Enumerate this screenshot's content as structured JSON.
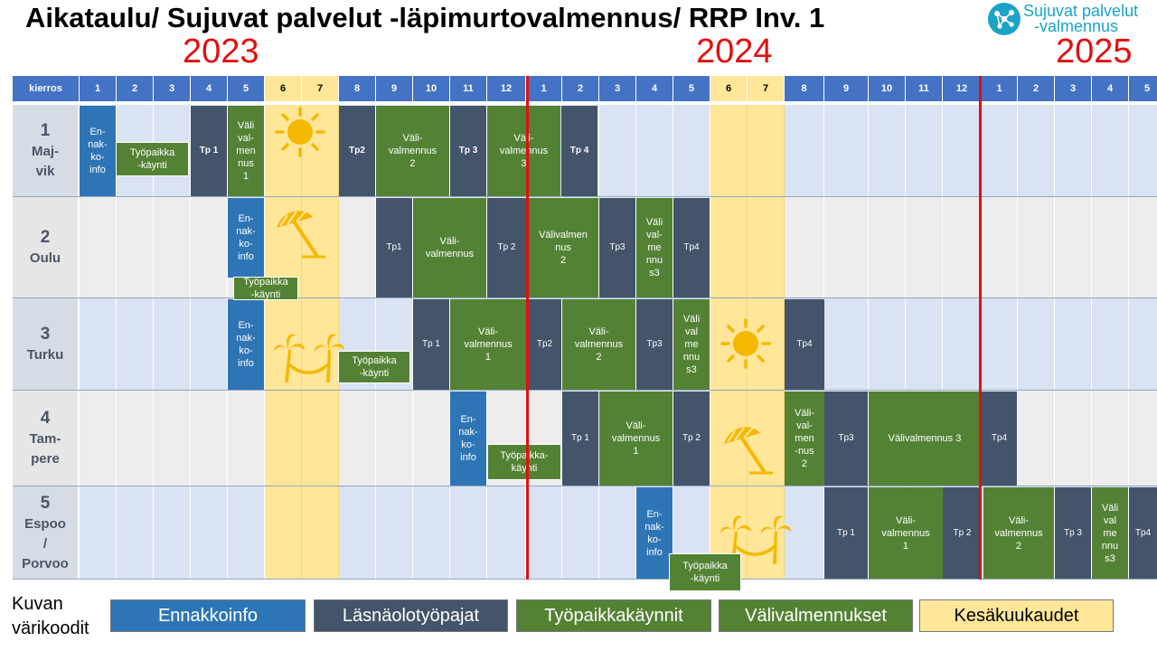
{
  "title": "Aikataulu/ Sujuvat palvelut -läpimurtovalmennus/ RRP Inv. 1",
  "logo": {
    "line1": "Sujuvat palvelut",
    "line2": "-valmennus"
  },
  "years": [
    "2023",
    "2024",
    "2025"
  ],
  "header": {
    "label": "kierros",
    "months": [
      "1",
      "2",
      "3",
      "4",
      "5",
      "6",
      "7",
      "8",
      "9",
      "10",
      "11",
      "12",
      "1",
      "2",
      "3",
      "4",
      "5",
      "6",
      "7",
      "8",
      "9",
      "10",
      "11",
      "12",
      "1",
      "2",
      "3",
      "4",
      "5"
    ]
  },
  "rows": [
    {
      "num": "1",
      "name": "Maj-\nvik"
    },
    {
      "num": "2",
      "name": "Oulu"
    },
    {
      "num": "3",
      "name": "Turku"
    },
    {
      "num": "4",
      "name": "Tam-\npere"
    },
    {
      "num": "5",
      "name": "Espoo\n/\nPorvoo"
    }
  ],
  "summer_icons": [
    {
      "row": 0,
      "icon": "sun-icon"
    },
    {
      "row": 1,
      "icon": "umbrella-icon"
    },
    {
      "row": 2,
      "icon": "palm-hammock-icon"
    },
    {
      "row": 2,
      "icon": "sun-icon"
    },
    {
      "row": 3,
      "icon": "umbrella-icon"
    },
    {
      "row": 4,
      "icon": "palm-hammock-icon"
    }
  ],
  "blocks": [
    {
      "row": 0,
      "type": "ennakko",
      "label": "En-\nnak-\nko-\ninfo"
    },
    {
      "row": 0,
      "type": "tyo",
      "label": "Työpaikka\n-käynti"
    },
    {
      "row": 0,
      "type": "lasna",
      "label": "Tp 1"
    },
    {
      "row": 0,
      "type": "vali",
      "label": "Väli\nval-\nmen\nnus\n1"
    },
    {
      "row": 0,
      "type": "lasna",
      "label": "Tp2"
    },
    {
      "row": 0,
      "type": "vali",
      "label": "Väli-\nvalmennus\n2"
    },
    {
      "row": 0,
      "type": "lasna",
      "label": "Tp 3"
    },
    {
      "row": 0,
      "type": "vali",
      "label": "Väli-\nvalmennus\n3"
    },
    {
      "row": 0,
      "type": "lasna",
      "label": "Tp 4"
    },
    {
      "row": 1,
      "type": "ennakko",
      "label": "En-\nnak-\nko-\ninfo"
    },
    {
      "row": 1,
      "type": "tyo",
      "label": "Työpaikka\n-käynti"
    },
    {
      "row": 1,
      "type": "lasna",
      "label": "Tp1"
    },
    {
      "row": 1,
      "type": "vali",
      "label": "Väli-\nvalmennus"
    },
    {
      "row": 1,
      "type": "lasna",
      "label": "Tp 2"
    },
    {
      "row": 1,
      "type": "vali",
      "label": "Välivalmen\nnus\n2"
    },
    {
      "row": 1,
      "type": "lasna",
      "label": "Tp3"
    },
    {
      "row": 1,
      "type": "vali",
      "label": "Väli\nval-\nme\nnnu\ns3"
    },
    {
      "row": 1,
      "type": "lasna",
      "label": "Tp4"
    },
    {
      "row": 2,
      "type": "ennakko",
      "label": "En-\nnak-\nko-\ninfo"
    },
    {
      "row": 2,
      "type": "tyo",
      "label": "Työpaikka\n-käynti"
    },
    {
      "row": 2,
      "type": "lasna",
      "label": "Tp 1"
    },
    {
      "row": 2,
      "type": "vali",
      "label": "Väli-\nvalmennus\n1"
    },
    {
      "row": 2,
      "type": "lasna",
      "label": "Tp2"
    },
    {
      "row": 2,
      "type": "vali",
      "label": "Väli-\nvalmennus\n2"
    },
    {
      "row": 2,
      "type": "lasna",
      "label": "Tp3"
    },
    {
      "row": 2,
      "type": "vali",
      "label": "Väli\nval\nme\nnnu\ns3"
    },
    {
      "row": 2,
      "type": "lasna",
      "label": "Tp4"
    },
    {
      "row": 3,
      "type": "ennakko",
      "label": "En-\nnak-\nko-\ninfo"
    },
    {
      "row": 3,
      "type": "tyo",
      "label": "Työpaikka-\nkäynti"
    },
    {
      "row": 3,
      "type": "lasna",
      "label": "Tp 1"
    },
    {
      "row": 3,
      "type": "vali",
      "label": "Väli-\nvalmennus\n1"
    },
    {
      "row": 3,
      "type": "lasna",
      "label": "Tp 2"
    },
    {
      "row": 3,
      "type": "vali",
      "label": "Väli-\nval-\nmen\n-nus\n2"
    },
    {
      "row": 3,
      "type": "lasna",
      "label": "Tp3"
    },
    {
      "row": 3,
      "type": "vali",
      "label": "Välivalmennus 3"
    },
    {
      "row": 3,
      "type": "lasna",
      "label": "Tp4"
    },
    {
      "row": 4,
      "type": "ennakko",
      "label": "En-\nnak-\nko-\ninfo"
    },
    {
      "row": 4,
      "type": "tyo",
      "label": "Työpaikka\n-käynti"
    },
    {
      "row": 4,
      "type": "lasna",
      "label": "Tp 1"
    },
    {
      "row": 4,
      "type": "vali",
      "label": "Väli-\nvalmennus\n1"
    },
    {
      "row": 4,
      "type": "lasna",
      "label": "Tp 2"
    },
    {
      "row": 4,
      "type": "vali",
      "label": "Väli-\nvalmennus\n2"
    },
    {
      "row": 4,
      "type": "lasna",
      "label": "Tp 3"
    },
    {
      "row": 4,
      "type": "vali",
      "label": "Väli\nval\nme\nnnu\ns3"
    },
    {
      "row": 4,
      "type": "lasna",
      "label": "Tp4"
    }
  ],
  "legend": {
    "title": "Kuvan\nvärikoodit",
    "items": [
      {
        "type": "ennakko",
        "label": "Ennakkoinfo"
      },
      {
        "type": "lasna",
        "label": "Läsnäolotyöpajat"
      },
      {
        "type": "tyo",
        "label": "Työpaikkakäynnit"
      },
      {
        "type": "vali",
        "label": "Välivalmennukset"
      },
      {
        "type": "summer",
        "label": "Kesäkuukaudet"
      }
    ]
  },
  "colors": {
    "ennakko": "#2E75B6",
    "lasna": "#44546A",
    "tyo": "#548235",
    "vali": "#548235",
    "summer": "#FFE699",
    "header": "#4472C4",
    "row_odd": "#DAE3F3",
    "row_even": "#EDEDED",
    "divider": "#E20F0F"
  }
}
